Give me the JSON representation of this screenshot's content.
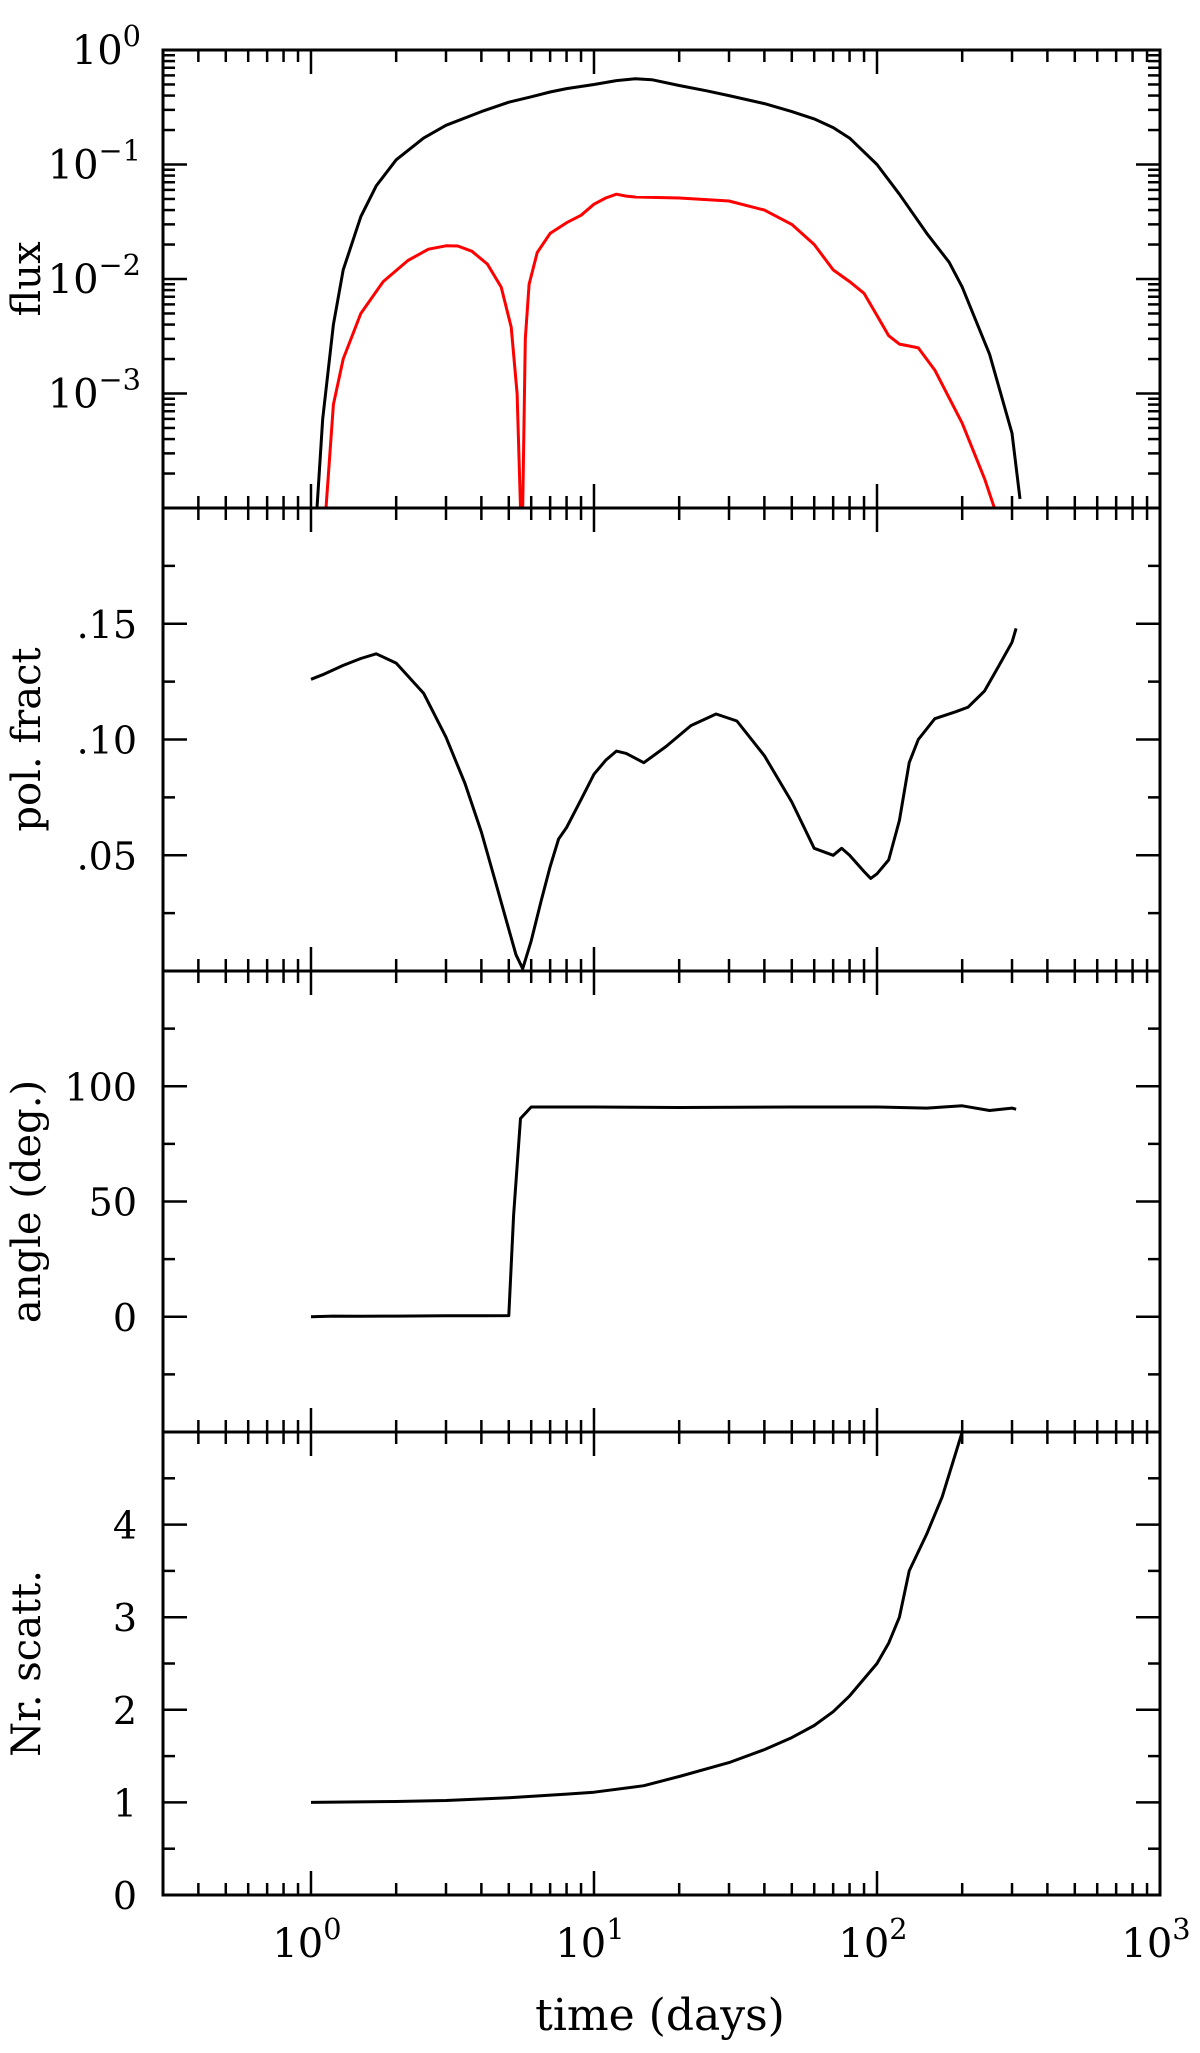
{
  "chart_data": [
    {
      "type": "line",
      "panel": "flux",
      "ylabel": "flux",
      "xscale": "log",
      "yscale": "log",
      "xlim": [
        0.3,
        1000
      ],
      "ylim": [
        0.0001,
        1
      ],
      "yticks": [
        {
          "value": 1,
          "base": "10",
          "exp": "0"
        },
        {
          "value": 0.1,
          "base": "10",
          "exp": "−1"
        },
        {
          "value": 0.01,
          "base": "10",
          "exp": "−2"
        },
        {
          "value": 0.001,
          "base": "10",
          "exp": "−3"
        }
      ],
      "series": [
        {
          "color": "#000000",
          "x": [
            1.05,
            1.1,
            1.2,
            1.3,
            1.5,
            1.7,
            2.0,
            2.5,
            3.0,
            4.0,
            5.0,
            6.0,
            7.0,
            8.0,
            10.0,
            12.0,
            14.0,
            16.0,
            20.0,
            25.0,
            30.0,
            40.0,
            50.0,
            60.0,
            70.0,
            80.0,
            100.0,
            120.0,
            150.0,
            180.0,
            200.0,
            250.0,
            300.0,
            320.0
          ],
          "y": [
            0.0001,
            0.0006,
            0.004,
            0.012,
            0.035,
            0.065,
            0.11,
            0.17,
            0.22,
            0.29,
            0.35,
            0.39,
            0.43,
            0.46,
            0.5,
            0.54,
            0.56,
            0.55,
            0.49,
            0.44,
            0.4,
            0.34,
            0.29,
            0.25,
            0.21,
            0.17,
            0.1,
            0.055,
            0.025,
            0.014,
            0.0085,
            0.0022,
            0.00045,
            0.00012
          ]
        },
        {
          "color": "#ff0000",
          "x": [
            1.13,
            1.2,
            1.3,
            1.5,
            1.8,
            2.2,
            2.6,
            3.0,
            3.3,
            3.7,
            4.2,
            4.7,
            5.1,
            5.35,
            5.5,
            5.6,
            5.72,
            5.9,
            6.3,
            7.0,
            8.0,
            9.0,
            10.0,
            11.0,
            12.0,
            13.0,
            14.0,
            20.0,
            30.0,
            40.0,
            50.0,
            60.0,
            70.0,
            80.0,
            90.0,
            100.0,
            110.0,
            120.0,
            130.0,
            140.0,
            160.0,
            200.0,
            240.0,
            260.0
          ],
          "y": [
            0.0001,
            0.0008,
            0.002,
            0.005,
            0.0095,
            0.0145,
            0.0182,
            0.0195,
            0.0194,
            0.0175,
            0.0135,
            0.0085,
            0.0038,
            0.001,
            0.0001,
            0.0001,
            0.003,
            0.009,
            0.017,
            0.025,
            0.031,
            0.036,
            0.045,
            0.051,
            0.055,
            0.053,
            0.052,
            0.051,
            0.048,
            0.04,
            0.03,
            0.02,
            0.012,
            0.0095,
            0.0075,
            0.0048,
            0.0032,
            0.0027,
            0.0026,
            0.0025,
            0.0016,
            0.00055,
            0.00018,
            0.0001
          ]
        }
      ]
    },
    {
      "type": "line",
      "panel": "polarization",
      "ylabel": "pol. fract",
      "xscale": "log",
      "xlim": [
        0.3,
        1000
      ],
      "ylim": [
        0,
        0.2
      ],
      "yticks": [
        {
          "value": 0.05,
          "label": ".05"
        },
        {
          "value": 0.1,
          "label": ".10"
        },
        {
          "value": 0.15,
          "label": ".15"
        }
      ],
      "series": [
        {
          "color": "#000000",
          "x": [
            1.0,
            1.1,
            1.3,
            1.5,
            1.7,
            2.0,
            2.5,
            3.0,
            3.5,
            4.0,
            4.5,
            5.0,
            5.3,
            5.6,
            6.0,
            6.5,
            7.0,
            7.5,
            8.0,
            9.0,
            10.0,
            11.0,
            12.0,
            13.0,
            15.0,
            18.0,
            22.0,
            27.0,
            32.0,
            40.0,
            50.0,
            60.0,
            70.0,
            75.0,
            80.0,
            90.0,
            95.0,
            100.0,
            110.0,
            120.0,
            130.0,
            140.0,
            160.0,
            190.0,
            210.0,
            240.0,
            270.0,
            300.0,
            310.0
          ],
          "y": [
            0.126,
            0.128,
            0.132,
            0.135,
            0.137,
            0.133,
            0.12,
            0.101,
            0.081,
            0.06,
            0.038,
            0.018,
            0.007,
            0.001,
            0.013,
            0.03,
            0.045,
            0.057,
            0.062,
            0.074,
            0.085,
            0.091,
            0.095,
            0.094,
            0.09,
            0.097,
            0.106,
            0.111,
            0.108,
            0.093,
            0.073,
            0.053,
            0.05,
            0.053,
            0.05,
            0.043,
            0.04,
            0.042,
            0.048,
            0.065,
            0.09,
            0.1,
            0.109,
            0.112,
            0.114,
            0.121,
            0.132,
            0.142,
            0.148
          ]
        }
      ]
    },
    {
      "type": "line",
      "panel": "angle",
      "ylabel": "angle (deg.)",
      "xscale": "log",
      "xlim": [
        0.3,
        1000
      ],
      "ylim": [
        -50,
        150
      ],
      "yticks": [
        {
          "value": 0,
          "label": "0"
        },
        {
          "value": 50,
          "label": "50"
        },
        {
          "value": 100,
          "label": "100"
        }
      ],
      "series": [
        {
          "color": "#000000",
          "x": [
            1.0,
            1.2,
            1.5,
            2.0,
            3.0,
            4.0,
            5.0,
            5.2,
            5.5,
            6.0,
            10.0,
            20.0,
            50.0,
            100.0,
            150.0,
            200.0,
            250.0,
            300.0,
            310.0
          ],
          "y": [
            0,
            0.3,
            0.2,
            0.3,
            0.4,
            0.4,
            0.5,
            44,
            86,
            91,
            91,
            90.8,
            91,
            91,
            90.5,
            91.5,
            89.5,
            90.5,
            90
          ]
        }
      ]
    },
    {
      "type": "line",
      "panel": "scatterings",
      "ylabel": "Nr. scatt.",
      "xlabel": "time (days)",
      "xscale": "log",
      "xlim": [
        0.3,
        1000
      ],
      "ylim": [
        0,
        5
      ],
      "xticks": [
        {
          "value": 1,
          "base": "10",
          "exp": "0"
        },
        {
          "value": 10,
          "base": "10",
          "exp": "1"
        },
        {
          "value": 100,
          "base": "10",
          "exp": "2"
        },
        {
          "value": 1000,
          "base": "10",
          "exp": "3"
        }
      ],
      "yticks": [
        {
          "value": 0,
          "label": "0"
        },
        {
          "value": 1,
          "label": "1"
        },
        {
          "value": 2,
          "label": "2"
        },
        {
          "value": 3,
          "label": "3"
        },
        {
          "value": 4,
          "label": "4"
        }
      ],
      "series": [
        {
          "color": "#000000",
          "x": [
            1.0,
            2.0,
            3.0,
            5.0,
            8.0,
            10.0,
            15.0,
            20.0,
            30.0,
            40.0,
            50.0,
            60.0,
            70.0,
            80.0,
            100.0,
            110.0,
            120.0,
            130.0,
            150.0,
            170.0,
            200.0
          ],
          "y": [
            1.0,
            1.01,
            1.02,
            1.05,
            1.09,
            1.11,
            1.18,
            1.28,
            1.43,
            1.57,
            1.7,
            1.83,
            1.98,
            2.15,
            2.5,
            2.72,
            3.0,
            3.5,
            3.9,
            4.3,
            5.0
          ]
        }
      ]
    }
  ]
}
